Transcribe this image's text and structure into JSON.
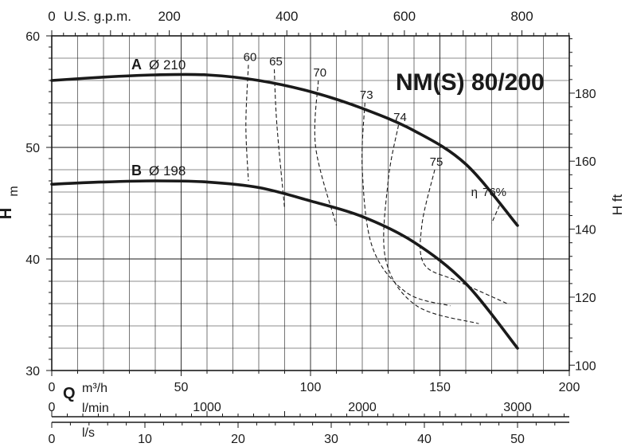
{
  "chart_data": {
    "type": "line",
    "title": "NM(S) 80/200",
    "x_axis": {
      "label_unit_primary": "m³/h",
      "label_q": "Q",
      "range": [
        0,
        200
      ],
      "ticks": [
        "0",
        "50",
        "100",
        "150",
        "200"
      ]
    },
    "top_axis": {
      "label": "U.S. g.p.m.",
      "ticks": [
        "0",
        "200",
        "400",
        "600",
        "800"
      ]
    },
    "left_axis": {
      "label_h": "H",
      "label_unit": "m",
      "range": [
        30,
        60
      ],
      "ticks": [
        "30",
        "40",
        "50",
        "60"
      ]
    },
    "right_axis": {
      "label": "H ft",
      "ticks": [
        "100",
        "120",
        "140",
        "160",
        "180"
      ]
    },
    "lmin_axis": {
      "label": "l/min",
      "ticks": [
        "0",
        "1000",
        "2000",
        "3000"
      ]
    },
    "ls_axis": {
      "label": "l/s",
      "ticks": [
        "0",
        "10",
        "20",
        "30",
        "40",
        "50"
      ]
    },
    "series": [
      {
        "name": "A Ø 210",
        "letter": "A",
        "diameter_label": "Ø 210",
        "x": [
          0,
          20,
          40,
          60,
          80,
          100,
          120,
          140,
          160,
          180
        ],
        "y": [
          56.0,
          56.3,
          56.5,
          56.5,
          56.0,
          55.0,
          53.5,
          51.5,
          48.5,
          43.0
        ]
      },
      {
        "name": "B Ø 198",
        "letter": "B",
        "diameter_label": "Ø 198",
        "x": [
          0,
          20,
          40,
          60,
          80,
          100,
          120,
          140,
          160,
          180
        ],
        "y": [
          46.7,
          46.9,
          47.0,
          46.9,
          46.4,
          45.2,
          43.8,
          41.5,
          37.8,
          32.0
        ]
      }
    ],
    "efficiency_curves": [
      {
        "label": "60",
        "x": [
          76,
          75,
          76
        ],
        "y": [
          57.4,
          52.0,
          47.0
        ]
      },
      {
        "label": "65",
        "x": [
          86,
          87,
          90
        ],
        "y": [
          57.0,
          52.0,
          44.5
        ]
      },
      {
        "label": "70",
        "x": [
          103,
          102,
          110
        ],
        "y": [
          56.0,
          50.0,
          43.0
        ]
      },
      {
        "label": "73",
        "x": [
          121,
          120,
          124,
          137,
          154
        ],
        "y": [
          54.0,
          48.0,
          41.0,
          37.0,
          35.8
        ]
      },
      {
        "label": "74",
        "x": [
          134,
          130,
          129,
          141,
          165
        ],
        "y": [
          52.0,
          47.0,
          40.0,
          35.8,
          34.2
        ]
      },
      {
        "label": "75",
        "x": [
          148,
          143,
          144,
          157,
          176
        ],
        "y": [
          48.0,
          43.0,
          39.5,
          38.0,
          36.0
        ]
      },
      {
        "label": "76%",
        "x": [
          173,
          170
        ],
        "y": [
          44.8,
          43.2
        ]
      }
    ],
    "efficiency_symbol": "η",
    "grid": true
  }
}
